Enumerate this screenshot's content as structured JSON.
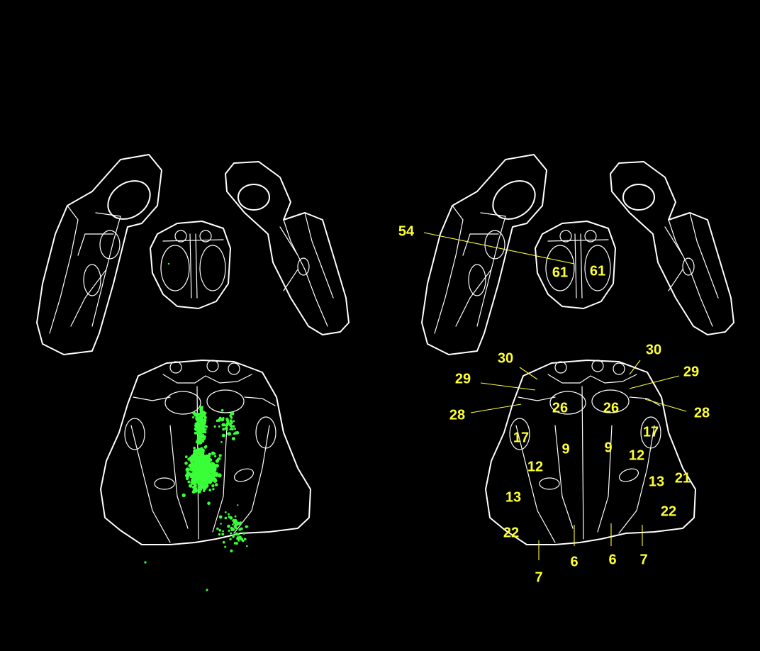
{
  "colors": {
    "background": "#000000",
    "outline": "#ffffff",
    "label": "#ffff33",
    "marker": "#39ff39"
  },
  "labels": [
    "54",
    "61",
    "61",
    "30",
    "30",
    "29",
    "29",
    "28",
    "28",
    "26",
    "26",
    "17",
    "17",
    "9",
    "9",
    "12",
    "12",
    "13",
    "13",
    "21",
    "22",
    "22",
    "7",
    "7",
    "6",
    "6"
  ]
}
